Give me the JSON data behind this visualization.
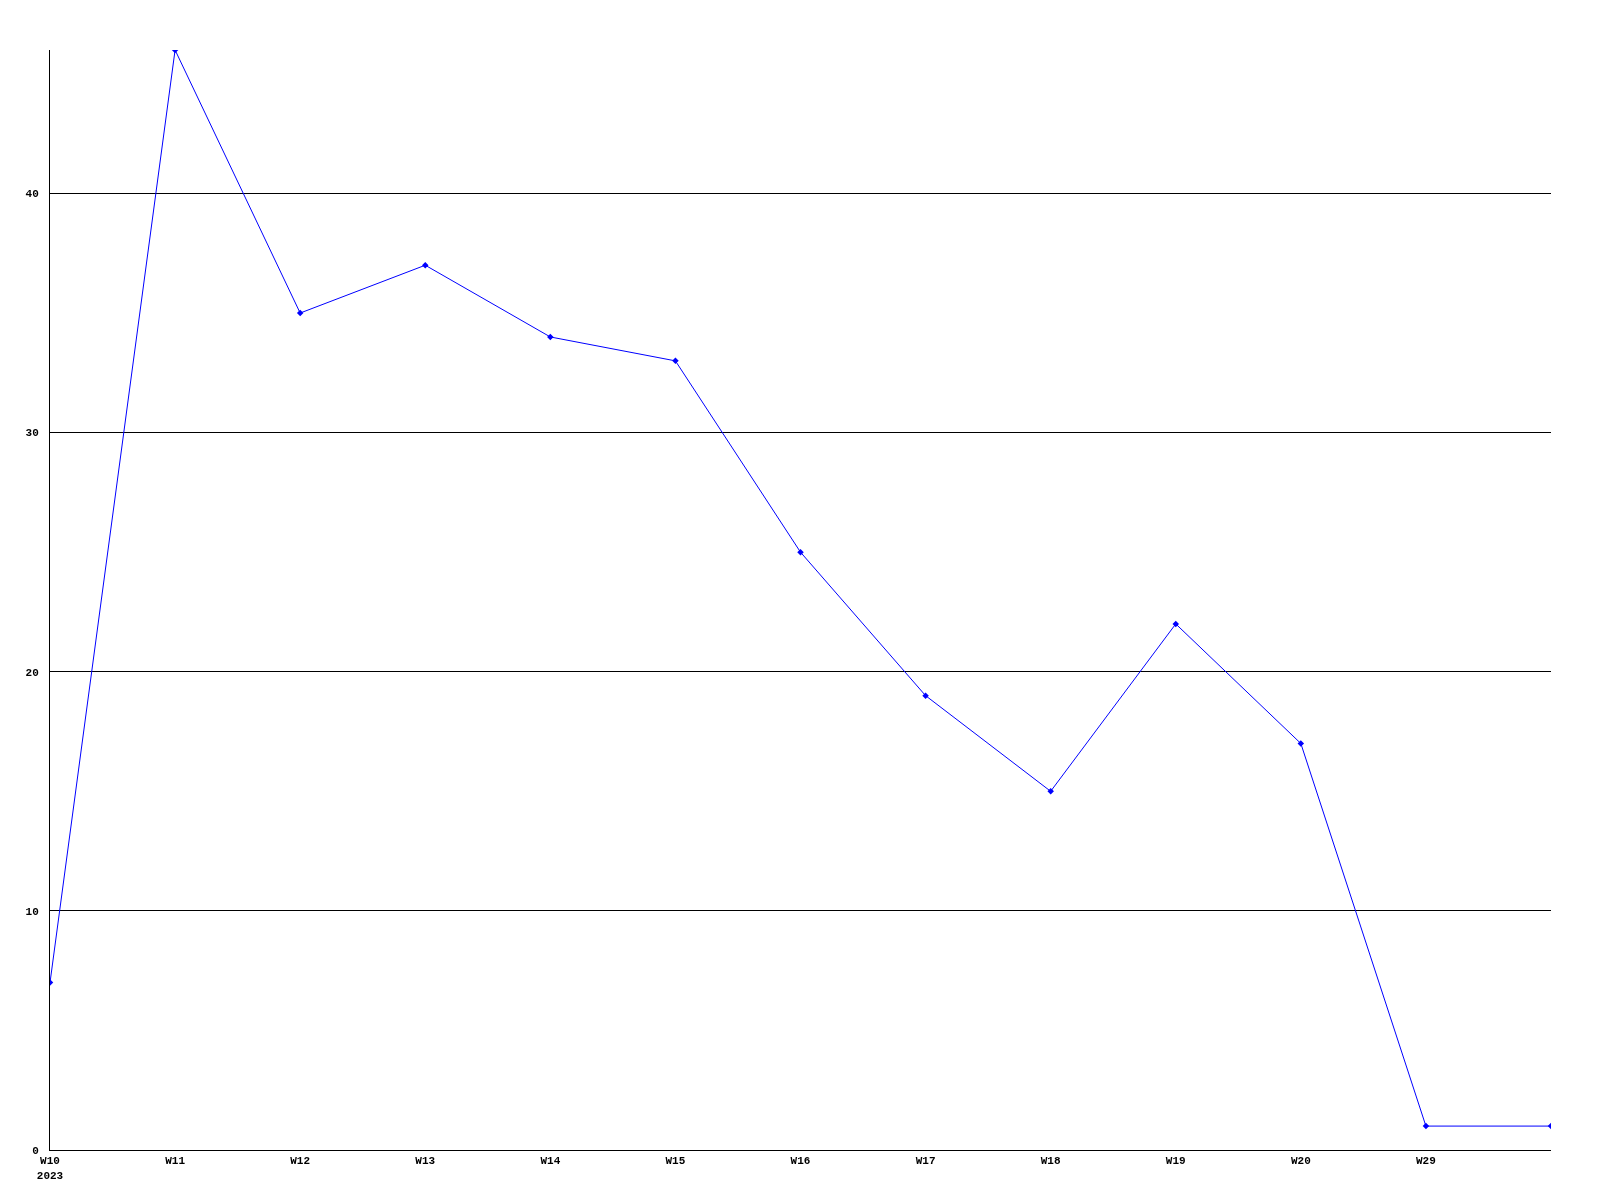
{
  "chart_data": {
    "type": "line",
    "categories": [
      "W10\n2023",
      "W11",
      "W12",
      "W13",
      "W14",
      "W15",
      "W16",
      "W17",
      "W18",
      "W19",
      "W20",
      "W29",
      null
    ],
    "series": [
      {
        "color": "#0000ff",
        "values": [
          7,
          46,
          35,
          37,
          34,
          33,
          25,
          19,
          15,
          22,
          17,
          1,
          1
        ]
      }
    ],
    "ylim": [
      0,
      46
    ],
    "yticks": [
      0,
      10,
      20,
      30,
      40
    ],
    "grid": "y",
    "marker": "diamond",
    "line_style": "solid"
  }
}
